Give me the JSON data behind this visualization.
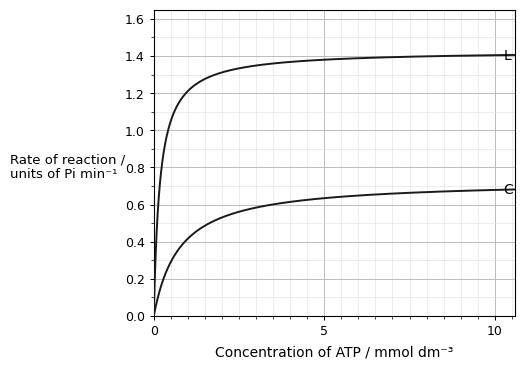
{
  "title": "",
  "xlabel": "Concentration of ATP / mmol dm⁻³",
  "ylabel_line1": "Rate of reaction /",
  "ylabel_line2": "units of Pi min⁻¹",
  "xlim": [
    0,
    10.6
  ],
  "ylim": [
    0,
    1.65
  ],
  "xticks": [
    0,
    5,
    10
  ],
  "yticks": [
    0,
    0.2,
    0.4,
    0.6,
    0.8,
    1.0,
    1.2,
    1.4,
    1.6
  ],
  "curve_L": {
    "Vmax": 1.43,
    "Km": 0.18,
    "label": "L",
    "color": "#1a1a1a"
  },
  "curve_C": {
    "Vmax": 0.73,
    "Km": 0.75,
    "label": "C",
    "color": "#1a1a1a"
  },
  "grid_major_color": "#bbbbbb",
  "grid_minor_color": "#dddddd",
  "bg_color": "#ffffff",
  "line_width": 1.4,
  "label_fontsize": 10,
  "tick_fontsize": 9
}
